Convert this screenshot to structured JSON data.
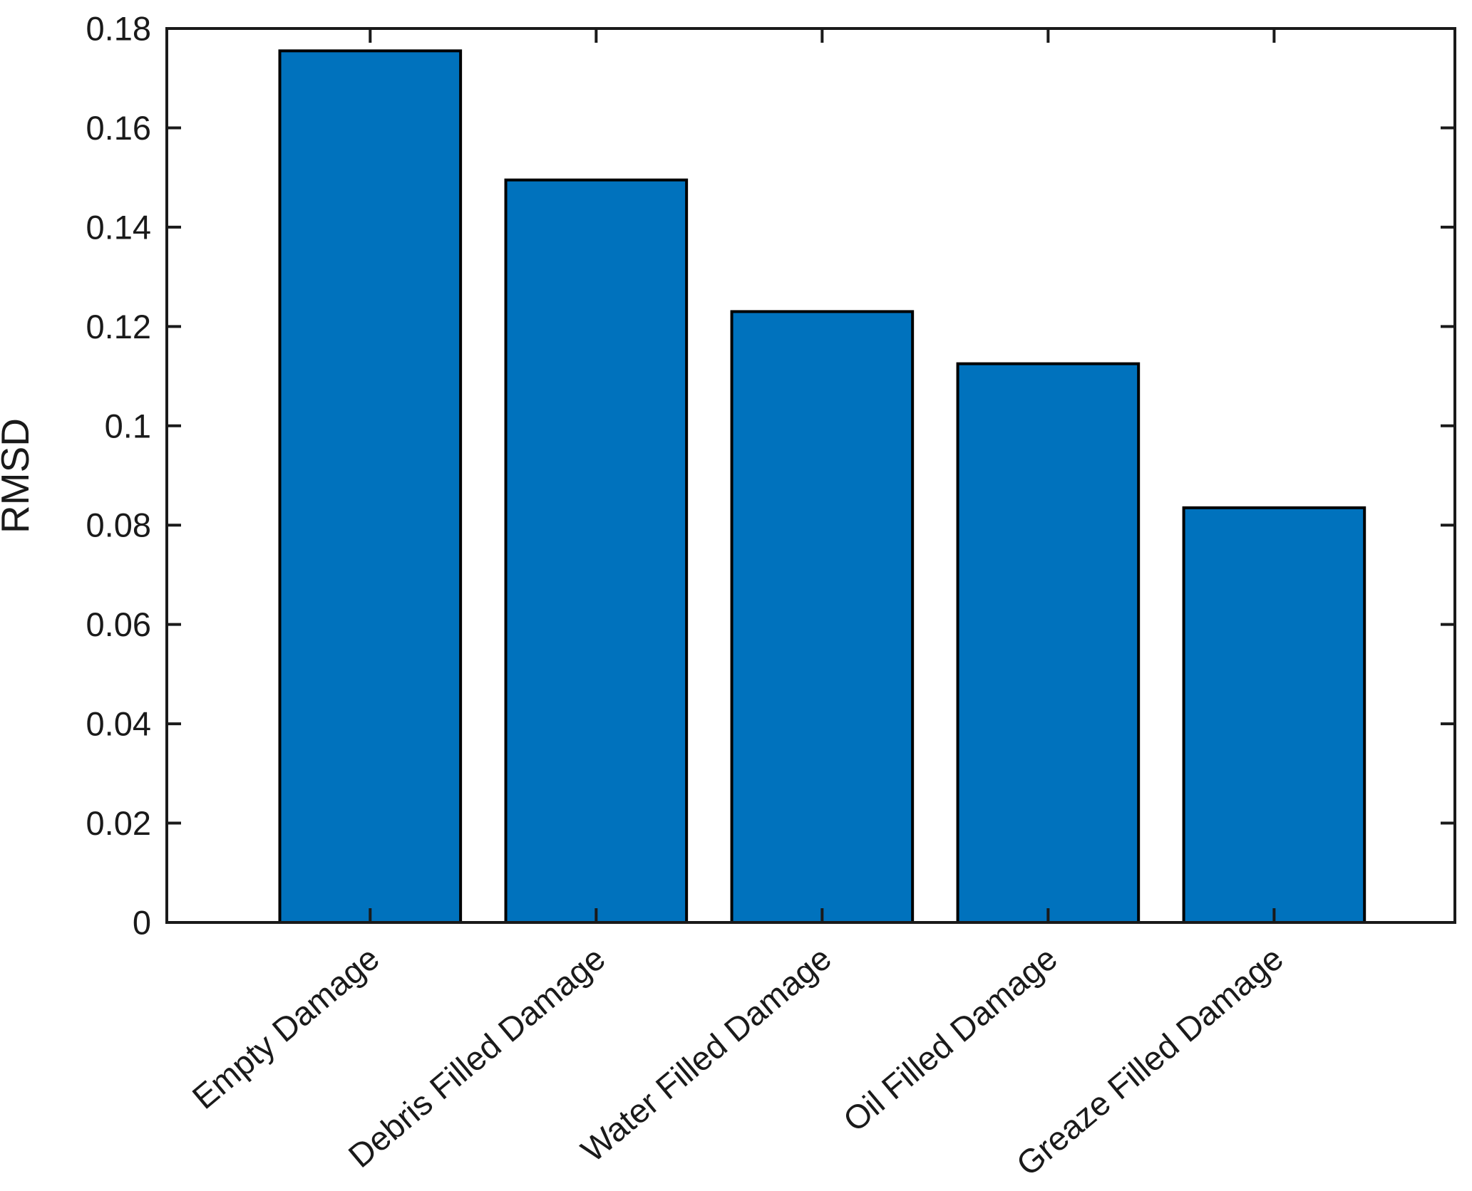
{
  "chart_data": {
    "type": "bar",
    "title": "",
    "categories": [
      "Empty Damage",
      "Debris Filled Damage",
      "Water Filled Damage",
      "Oil Filled Damage",
      "Greaze Filled Damage"
    ],
    "values": [
      0.1755,
      0.1495,
      0.123,
      0.1125,
      0.0835
    ],
    "xlabel": "",
    "ylabel": "RMSD",
    "ylim": [
      0,
      0.18
    ],
    "ytick_step": 0.02,
    "ytick_values": [
      0,
      0.02,
      0.04,
      0.06,
      0.08,
      0.1,
      0.12,
      0.14,
      0.16,
      0.18
    ],
    "ytick_labels": [
      "0",
      "0.02",
      "0.04",
      "0.06",
      "0.08",
      "0.1",
      "0.12",
      "0.14",
      "0.16",
      "0.18"
    ],
    "x_tick_label_rotation_deg": 40,
    "grid": false,
    "legend": null,
    "bar_color": "#0072BD",
    "bar_edge_color": "#000000",
    "axis_color": "#1a1a1a",
    "background": "#FFFFFF"
  }
}
